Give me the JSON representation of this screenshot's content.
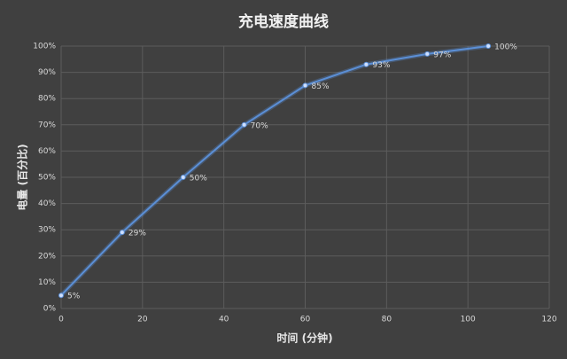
{
  "chart_data": {
    "type": "line",
    "title": "充电速度曲线",
    "x_label": "时间 (分钟)",
    "y_label": "电量 (百分比)",
    "x": [
      0,
      15,
      30,
      45,
      60,
      75,
      90,
      105
    ],
    "values": [
      5,
      29,
      50,
      70,
      85,
      93,
      97,
      100
    ],
    "value_labels": [
      "5%",
      "29%",
      "50%",
      "70%",
      "85%",
      "93%",
      "97%",
      "100%"
    ],
    "color": "#5b8fd6",
    "xlim": [
      0,
      120
    ],
    "xticks": [
      0,
      20,
      40,
      60,
      80,
      100,
      120
    ],
    "ylim": [
      0,
      100
    ],
    "yticks": [
      {
        "value": 0,
        "label": "0%"
      },
      {
        "value": 10,
        "label": "10%"
      },
      {
        "value": 20,
        "label": "20%"
      },
      {
        "value": 30,
        "label": "30%"
      },
      {
        "value": 40,
        "label": "40%"
      },
      {
        "value": 50,
        "label": "50%"
      },
      {
        "value": 60,
        "label": "60%"
      },
      {
        "value": 70,
        "label": "70%"
      },
      {
        "value": 80,
        "label": "80%"
      },
      {
        "value": 90,
        "label": "90%"
      },
      {
        "value": 100,
        "label": "100%"
      }
    ],
    "grid": true
  }
}
